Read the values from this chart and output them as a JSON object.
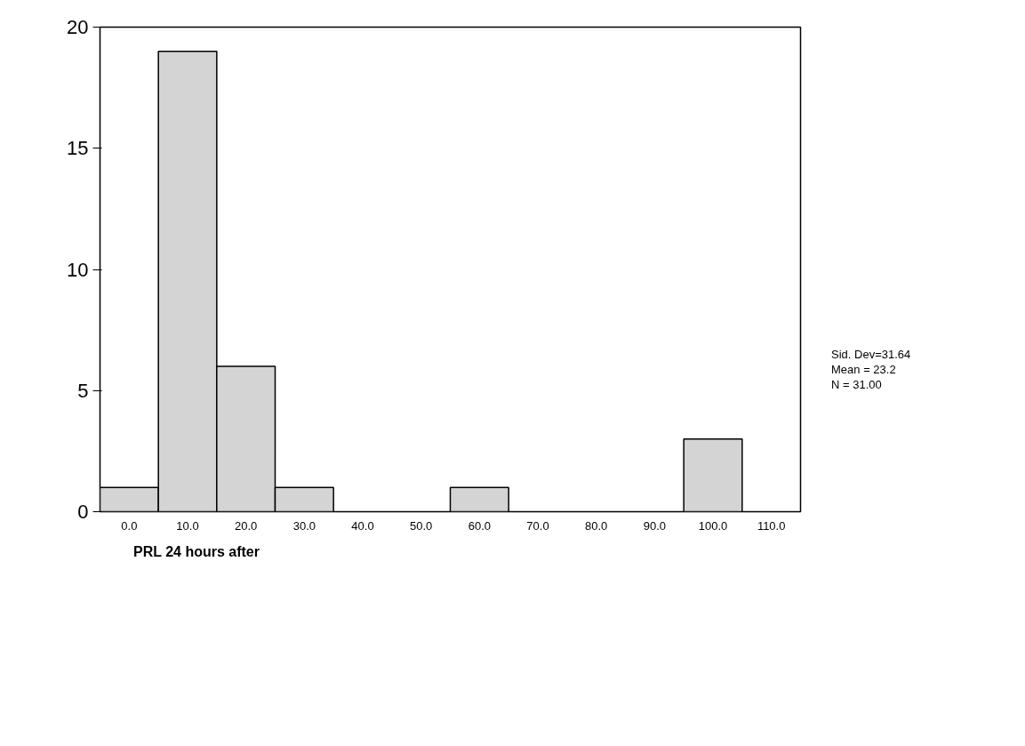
{
  "chart_data": {
    "type": "histogram",
    "xlabel": "PRL 24 hours after",
    "bins": [
      -5,
      5,
      15,
      25,
      35,
      45,
      55,
      65,
      75,
      85,
      95,
      105,
      115
    ],
    "values": [
      1,
      19,
      6,
      1,
      0,
      0,
      1,
      0,
      0,
      0,
      3,
      0
    ],
    "color": "#d4d4d4",
    "xlim": [
      -5,
      115
    ],
    "xticks": [
      {
        "value": 0,
        "label": "0.0"
      },
      {
        "value": 10,
        "label": "10.0"
      },
      {
        "value": 20,
        "label": "20.0"
      },
      {
        "value": 30,
        "label": "30.0"
      },
      {
        "value": 40,
        "label": "40.0"
      },
      {
        "value": 50,
        "label": "50.0"
      },
      {
        "value": 60,
        "label": "60.0"
      },
      {
        "value": 70,
        "label": "70.0"
      },
      {
        "value": 80,
        "label": "80.0"
      },
      {
        "value": 90,
        "label": "90.0"
      },
      {
        "value": 100,
        "label": "100.0"
      },
      {
        "value": 110,
        "label": "110.0"
      }
    ],
    "ylim": [
      0,
      20
    ],
    "yticks": [
      0,
      5,
      10,
      15,
      20
    ],
    "grid": false,
    "annotations": [
      "Sid. Dev=31.64",
      "Mean = 23.2",
      "N = 31.00"
    ]
  }
}
